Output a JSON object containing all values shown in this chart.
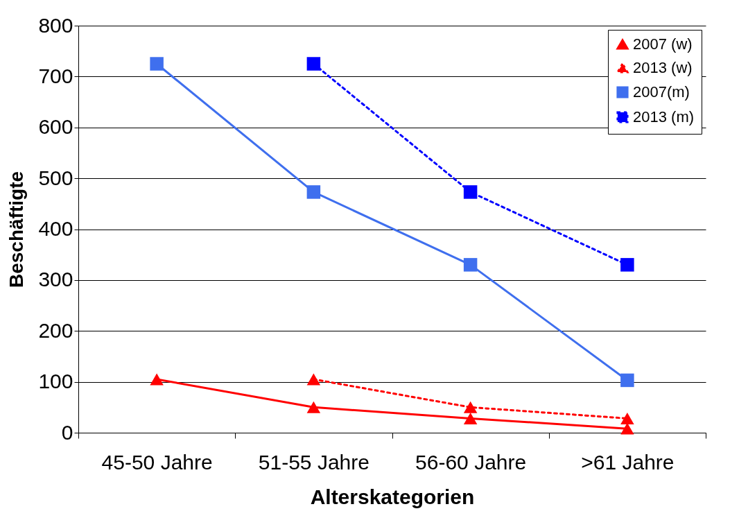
{
  "chart_data": {
    "type": "line",
    "xlabel": "Alterskategorien",
    "ylabel": "Beschäftigte",
    "categories": [
      "45-50 Jahre",
      "51-55 Jahre",
      "56-60 Jahre",
      ">61 Jahre"
    ],
    "series": [
      {
        "name": "2007 (w)",
        "color": "#ff0000",
        "marker": "triangle",
        "line_style": "solid",
        "values": [
          105,
          50,
          28,
          8
        ]
      },
      {
        "name": "2013 (w)",
        "color": "#ff0000",
        "marker": "triangle",
        "line_style": "dotted",
        "values": [
          null,
          105,
          50,
          28
        ]
      },
      {
        "name": "2007(m)",
        "color": "#3f6fee",
        "marker": "square",
        "line_style": "solid",
        "values": [
          725,
          473,
          330,
          103
        ]
      },
      {
        "name": "2013 (m)",
        "color": "#0000ff",
        "marker": "square",
        "line_style": "dotted",
        "values": [
          null,
          725,
          473,
          330
        ]
      }
    ],
    "ylim": [
      0,
      800
    ],
    "yticks": [
      0,
      100,
      200,
      300,
      400,
      500,
      600,
      700,
      800
    ],
    "grid": "y",
    "legend": "top right"
  }
}
